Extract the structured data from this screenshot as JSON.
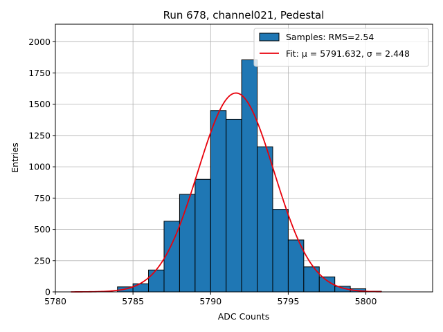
{
  "chart_data": {
    "type": "bar",
    "title": "Run 678, channel021, Pedestal",
    "xlabel": "ADC Counts",
    "ylabel": "Entries",
    "xlim": [
      5780,
      5804.3
    ],
    "ylim": [
      0,
      2140
    ],
    "xticks": [
      5780,
      5785,
      5790,
      5795,
      5800
    ],
    "yticks": [
      0,
      250,
      500,
      750,
      1000,
      1250,
      1500,
      1750,
      2000
    ],
    "grid": true,
    "legend_position": "top-right",
    "bin_width": 1,
    "bins": [
      {
        "x0": 5784,
        "value": 40
      },
      {
        "x0": 5785,
        "value": 65
      },
      {
        "x0": 5786,
        "value": 175
      },
      {
        "x0": 5787,
        "value": 565
      },
      {
        "x0": 5788,
        "value": 780
      },
      {
        "x0": 5789,
        "value": 900
      },
      {
        "x0": 5790,
        "value": 1450
      },
      {
        "x0": 5791,
        "value": 1380
      },
      {
        "x0": 5792,
        "value": 1855
      },
      {
        "x0": 5793,
        "value": 1160
      },
      {
        "x0": 5794,
        "value": 660
      },
      {
        "x0": 5795,
        "value": 415
      },
      {
        "x0": 5796,
        "value": 200
      },
      {
        "x0": 5797,
        "value": 120
      },
      {
        "x0": 5798,
        "value": 45
      },
      {
        "x0": 5799,
        "value": 25
      },
      {
        "x0": 5800,
        "value": 5
      }
    ],
    "fit": {
      "mu": 5791.632,
      "sigma": 2.448,
      "amplitude": 1590,
      "x_range": [
        5781,
        5801
      ]
    },
    "series": [
      {
        "name": "Samples: RMS=2.54",
        "type": "histogram",
        "color": "#1f77b4"
      },
      {
        "name": "Fit: μ = 5791.632, σ = 2.448",
        "type": "line",
        "color": "#e8000b"
      }
    ]
  }
}
